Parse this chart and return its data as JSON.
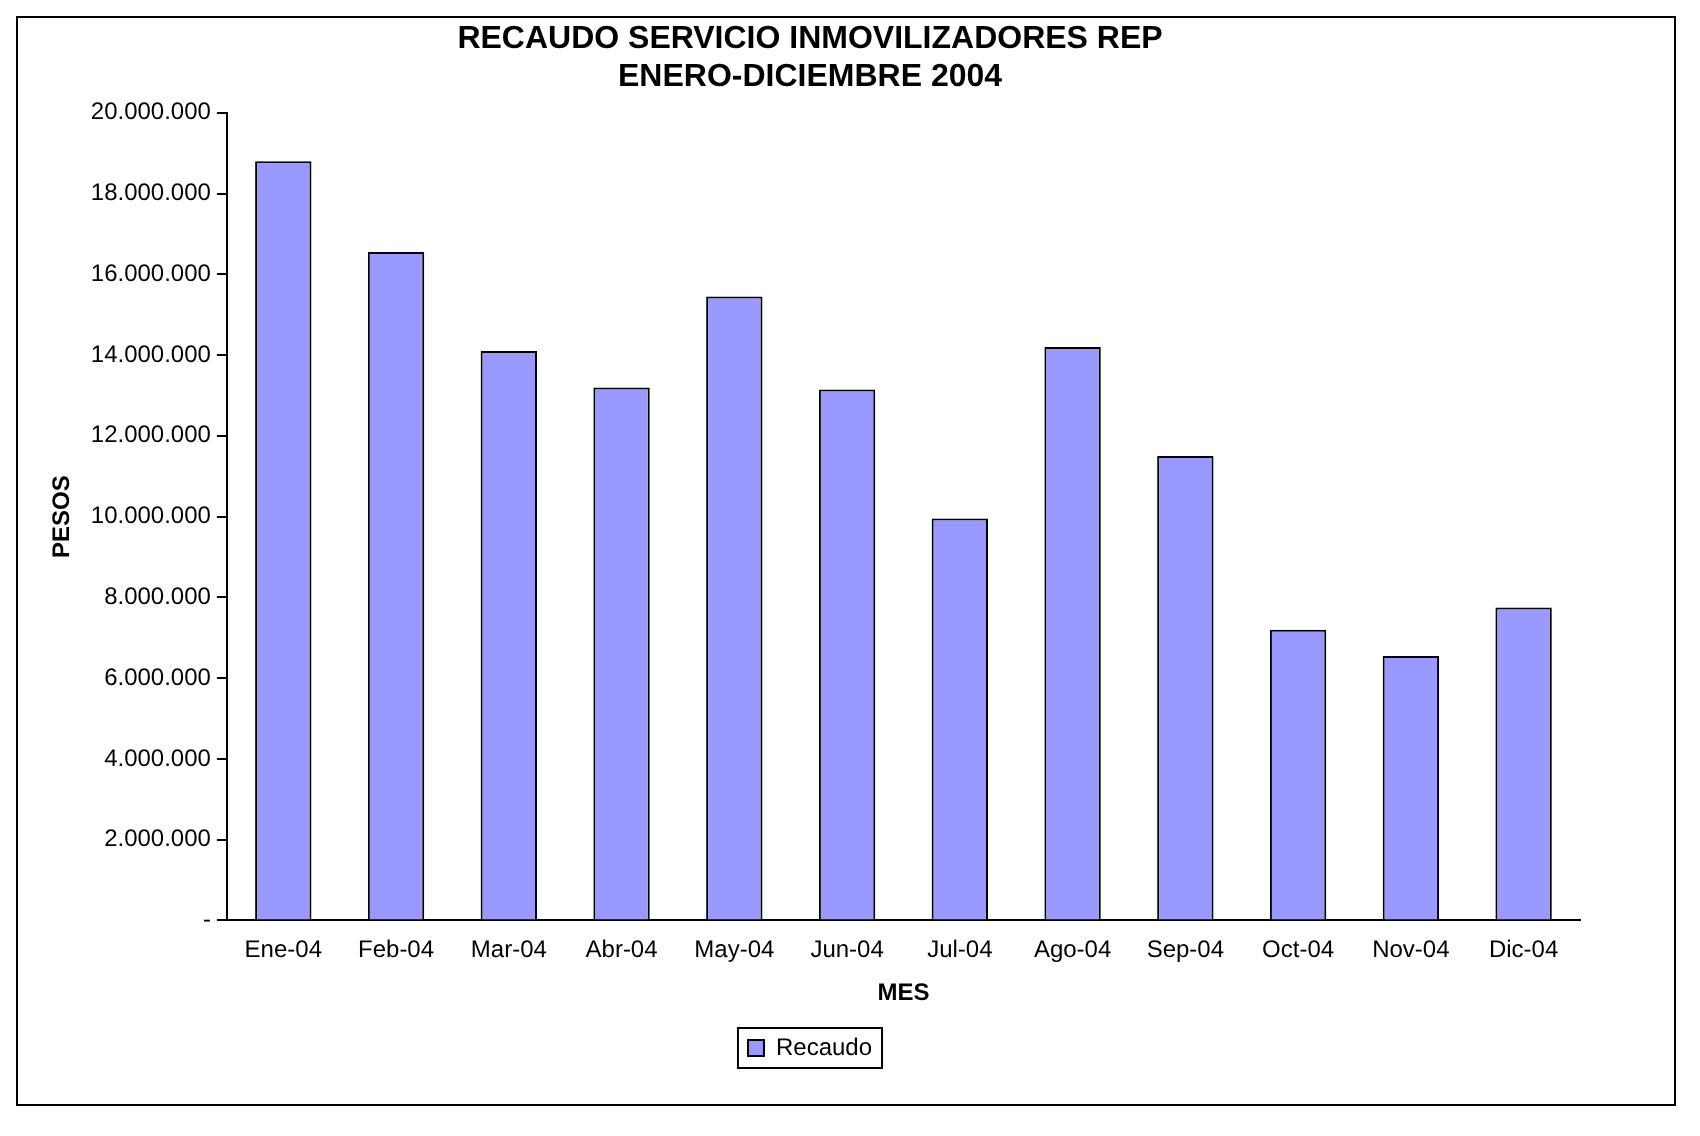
{
  "chart_data": {
    "type": "bar",
    "title": [
      "RECAUDO SERVICIO INMOVILIZADORES REP",
      "ENERO-DICIEMBRE 2004"
    ],
    "xlabel": "MES",
    "ylabel": "PESOS",
    "categories": [
      "Ene-04",
      "Feb-04",
      "Mar-04",
      "Abr-04",
      "May-04",
      "Jun-04",
      "Jul-04",
      "Ago-04",
      "Sep-04",
      "Oct-04",
      "Nov-04",
      "Dic-04"
    ],
    "series": [
      {
        "name": "Recaudo",
        "color": "#9999ff",
        "values": [
          18800000,
          16550000,
          14100000,
          13200000,
          15450000,
          13150000,
          9950000,
          14200000,
          11500000,
          7200000,
          6550000,
          7750000
        ]
      }
    ],
    "ylim": [
      0,
      20000000
    ],
    "yticks": [
      {
        "value": 0,
        "label": "-"
      },
      {
        "value": 2000000,
        "label": "2.000.000"
      },
      {
        "value": 4000000,
        "label": "4.000.000"
      },
      {
        "value": 6000000,
        "label": "6.000.000"
      },
      {
        "value": 8000000,
        "label": "8.000.000"
      },
      {
        "value": 10000000,
        "label": "10.000.000"
      },
      {
        "value": 12000000,
        "label": "12.000.000"
      },
      {
        "value": 14000000,
        "label": "14.000.000"
      },
      {
        "value": 16000000,
        "label": "16.000.000"
      },
      {
        "value": 18000000,
        "label": "18.000.000"
      },
      {
        "value": 20000000,
        "label": "20.000.000"
      }
    ],
    "grid": false,
    "legend": "bottom"
  }
}
